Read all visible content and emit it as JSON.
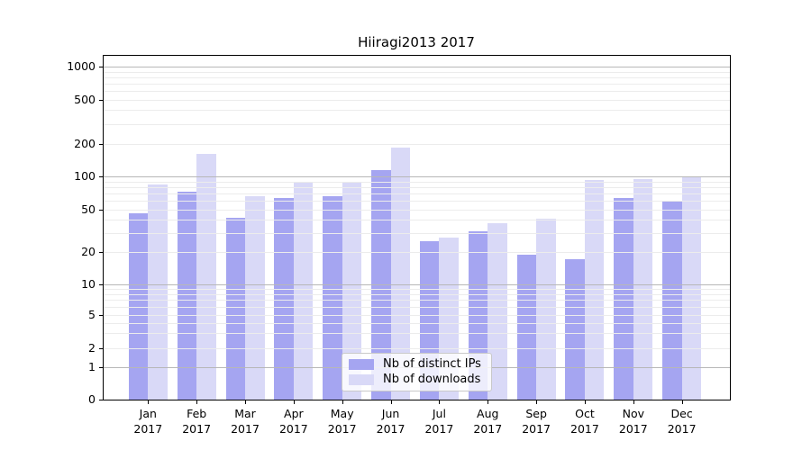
{
  "chart_data": {
    "type": "bar",
    "title": "Hiiragi2013 2017",
    "categories": [
      "Jan 2017",
      "Feb 2017",
      "Mar 2017",
      "Apr 2017",
      "May 2017",
      "Jun 2017",
      "Jul 2017",
      "Aug 2017",
      "Sep 2017",
      "Oct 2017",
      "Nov 2017",
      "Dec 2017"
    ],
    "series": [
      {
        "name": "Nb of distinct IPs",
        "color": "#a5a5f1",
        "values": [
          46,
          72,
          42,
          64,
          66,
          114,
          25,
          31,
          19,
          17,
          64,
          59
        ]
      },
      {
        "name": "Nb of downloads",
        "color": "#d9d9f7",
        "values": [
          85,
          160,
          66,
          90,
          90,
          185,
          27,
          37,
          41,
          92,
          94,
          100
        ]
      }
    ],
    "xlabel": "",
    "ylabel": "",
    "yticks": [
      0,
      1,
      2,
      5,
      10,
      20,
      50,
      100,
      200,
      500,
      1000
    ],
    "ylim": [
      0,
      1300
    ],
    "yscale": "symlog",
    "grid": true,
    "grid_major_color": "#b7b7b7",
    "grid_minor_color": "#ececec",
    "legend_position": "inside-bottom-center"
  }
}
